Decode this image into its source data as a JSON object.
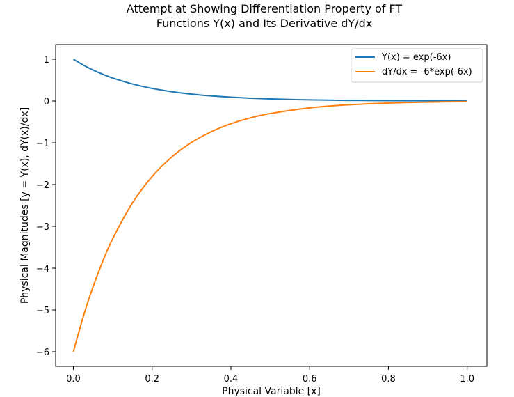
{
  "chart_data": {
    "type": "line",
    "title_line1": "Attempt at Showing Differentiation Property of FT",
    "title_line2": "Functions Y(x) and Its Derivative dY/dx",
    "xlabel": "Physical Variable [x]",
    "ylabel": "Physical Magnitudes [y = Y(x), dY(x)/dx]",
    "xlim": [
      -0.045,
      1.05
    ],
    "ylim": [
      -6.35,
      1.35
    ],
    "x_ticks": [
      0.0,
      0.2,
      0.4,
      0.6,
      0.8,
      1.0
    ],
    "x_tick_labels": [
      "0.0",
      "0.2",
      "0.4",
      "0.6",
      "0.8",
      "1.0"
    ],
    "y_ticks": [
      1,
      0,
      -1,
      -2,
      -3,
      -4,
      -5,
      -6
    ],
    "y_tick_labels": [
      "1",
      "0",
      "−1",
      "−2",
      "−3",
      "−4",
      "−5",
      "−6"
    ],
    "grid": false,
    "legend_position": "top-right",
    "x": [
      0.0,
      0.025,
      0.05,
      0.075,
      0.1,
      0.15,
      0.2,
      0.25,
      0.3,
      0.35,
      0.4,
      0.45,
      0.5,
      0.6,
      0.7,
      0.8,
      0.9,
      1.0
    ],
    "series": [
      {
        "name": "Y(x) = exp(-6x)",
        "color": "#1f77b4",
        "values": [
          1.0,
          0.861,
          0.741,
          0.638,
          0.549,
          0.407,
          0.301,
          0.223,
          0.165,
          0.122,
          0.091,
          0.067,
          0.05,
          0.027,
          0.015,
          0.008,
          0.005,
          0.002
        ]
      },
      {
        "name": "dY/dx = -6*exp(-6x)",
        "color": "#ff7f0e",
        "values": [
          -6.0,
          -5.164,
          -4.445,
          -3.826,
          -3.293,
          -2.439,
          -1.807,
          -1.339,
          -0.992,
          -0.735,
          -0.544,
          -0.403,
          -0.299,
          -0.164,
          -0.09,
          -0.049,
          -0.027,
          -0.015
        ]
      }
    ]
  }
}
